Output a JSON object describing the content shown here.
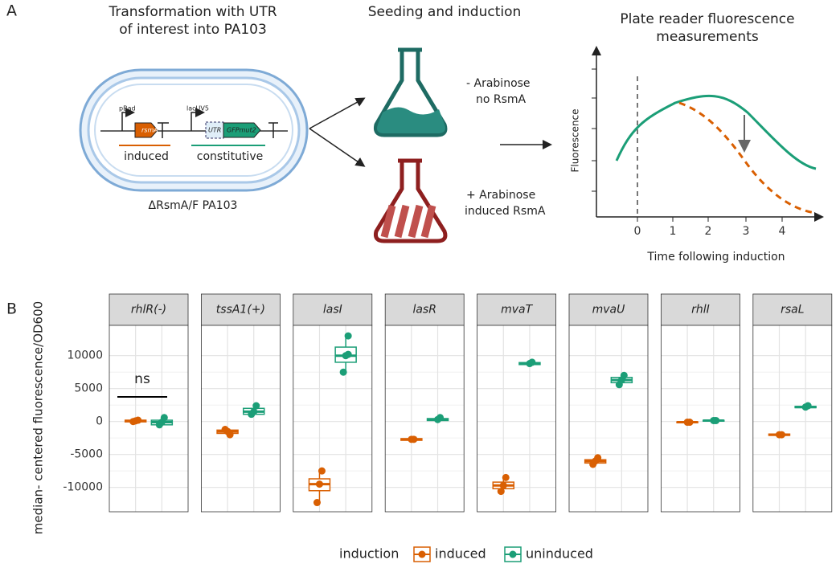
{
  "panel_a": {
    "label": "A",
    "step1_title": [
      "Transformation with UTR",
      "of interest into PA103"
    ],
    "step2_title": "Seeding and induction",
    "step3_title": [
      "Plate reader fluorescence",
      "measurements"
    ],
    "promoter1": "pBad",
    "gene1": "rsmA",
    "promoter2": "lacUV5",
    "utr": "UTR",
    "gene2": "GFPmut2",
    "region1": "induced",
    "region2": "constitutive",
    "strain": "ΔRsmA/F PA103",
    "condition1": [
      "- Arabinose",
      "no RsmA"
    ],
    "condition2": [
      "+ Arabinose",
      "induced RsmA"
    ],
    "y_label": "Fluorescence",
    "x_label": "Time following induction",
    "x_ticks": [
      "0",
      "1",
      "2",
      "3",
      "4"
    ]
  },
  "chart_data": {
    "type": "box",
    "panel_label": "B",
    "y_label": "median- centered fluorescence/OD600",
    "facets": [
      "rhlR(-)",
      "tssA1(+)",
      "lasI",
      "lasR",
      "mvaT",
      "mvaU",
      "rhlI",
      "rsaL"
    ],
    "legend_title": "induction",
    "annotation": "ns",
    "ylim": [
      -13700,
      14600
    ],
    "yticks": [
      -10000,
      -5000,
      0,
      5000,
      10000
    ],
    "grid": true,
    "series": [
      {
        "name": "induced",
        "color": "#d95f02",
        "boxes": [
          {
            "min": -100,
            "q1": -50,
            "median": 100,
            "q3": 200,
            "max": 250,
            "points": [
              200,
              0
            ]
          },
          {
            "min": -2000,
            "q1": -1800,
            "median": -1500,
            "q3": -1300,
            "max": -1200,
            "points": [
              -2000,
              -1200
            ]
          },
          {
            "min": -12300,
            "q1": -10500,
            "median": -9500,
            "q3": -8700,
            "max": -7500,
            "points": [
              -7500,
              -12300
            ]
          },
          {
            "min": -2900,
            "q1": -2850,
            "median": -2700,
            "q3": -2600,
            "max": -2550,
            "points": [
              -2700
            ]
          },
          {
            "min": -10600,
            "q1": -10200,
            "median": -9700,
            "q3": -9200,
            "max": -8500,
            "points": [
              -8500,
              -10600
            ]
          },
          {
            "min": -6500,
            "q1": -6300,
            "median": -6000,
            "q3": -5800,
            "max": -5500,
            "points": [
              -5500,
              -6500
            ]
          },
          {
            "min": -200,
            "q1": -150,
            "median": -100,
            "q3": -50,
            "max": 0,
            "points": [
              -100
            ]
          },
          {
            "min": -2200,
            "q1": -2100,
            "median": -2000,
            "q3": -1900,
            "max": -1800,
            "points": [
              -2000
            ]
          }
        ]
      },
      {
        "name": "uninduced",
        "color": "#1b9e77",
        "boxes": [
          {
            "min": -500,
            "q1": -500,
            "median": -100,
            "q3": 200,
            "max": 600,
            "points": [
              600,
              -500
            ]
          },
          {
            "min": 1100,
            "q1": 1100,
            "median": 1500,
            "q3": 2000,
            "max": 2400,
            "points": [
              2400,
              1100
            ]
          },
          {
            "min": 7500,
            "q1": 9000,
            "median": 10000,
            "q3": 11300,
            "max": 13000,
            "points": [
              13000,
              7500,
              10200
            ]
          },
          {
            "min": 100,
            "q1": 150,
            "median": 300,
            "q3": 450,
            "max": 600,
            "points": [
              600
            ]
          },
          {
            "min": 8600,
            "q1": 8650,
            "median": 8800,
            "q3": 8950,
            "max": 9000,
            "points": [
              9000
            ]
          },
          {
            "min": 5600,
            "q1": 5900,
            "median": 6300,
            "q3": 6700,
            "max": 7000,
            "points": [
              7000,
              5600
            ]
          },
          {
            "min": 100,
            "q1": 120,
            "median": 150,
            "q3": 180,
            "max": 200,
            "points": [
              150
            ]
          },
          {
            "min": 2000,
            "q1": 2100,
            "median": 2200,
            "q3": 2300,
            "max": 2400,
            "points": [
              2400
            ]
          }
        ]
      }
    ]
  }
}
